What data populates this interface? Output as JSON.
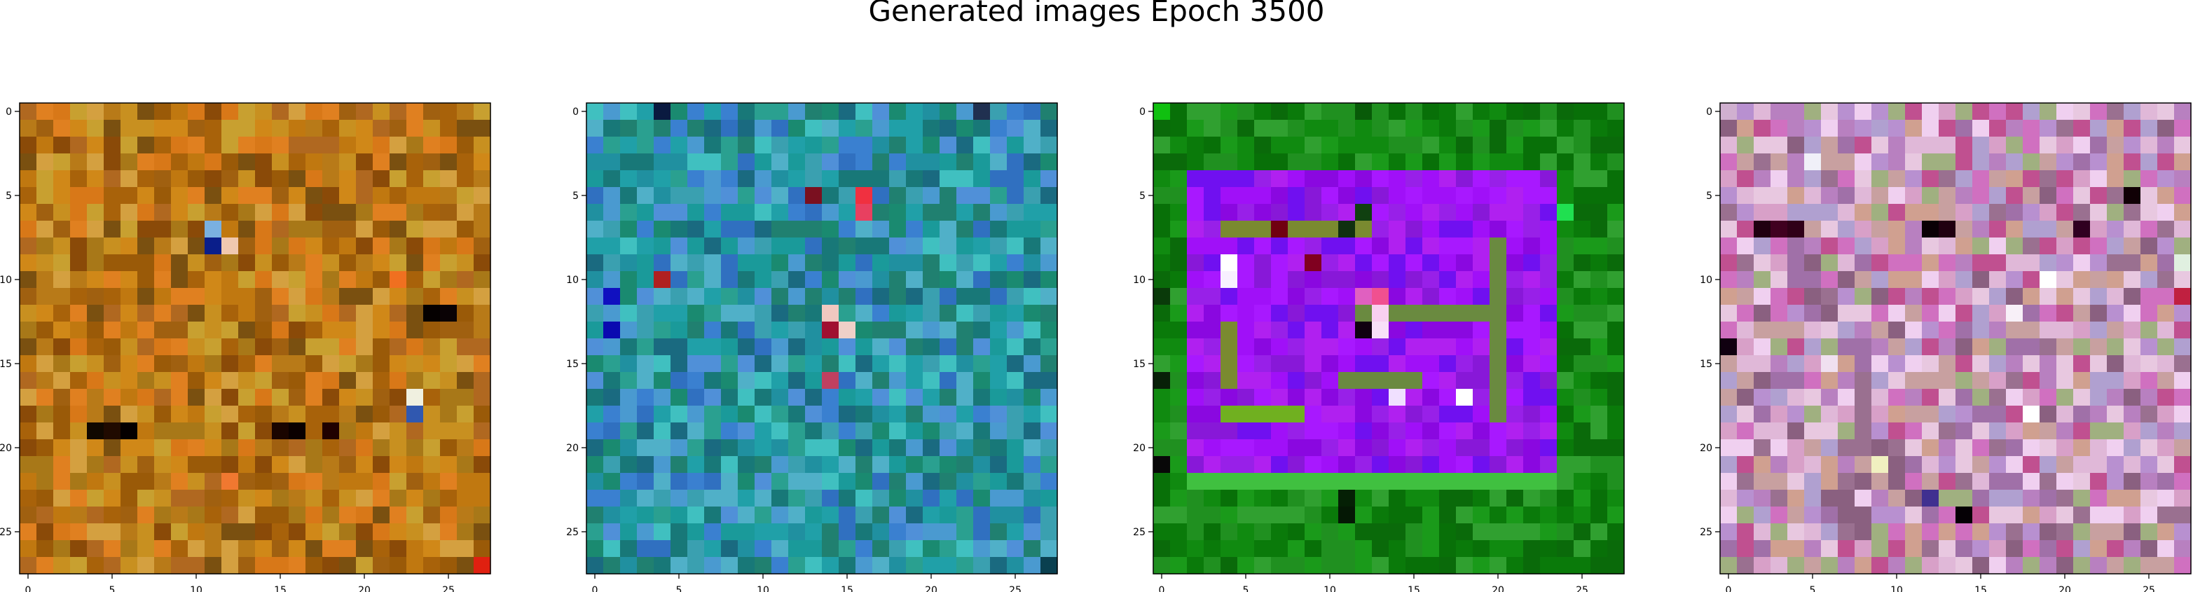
{
  "figure": {
    "title": "Generated images Epoch 3500"
  },
  "chart_data": [
    {
      "type": "heatmap",
      "panel": 1,
      "grid_size": 28,
      "xticks": [
        0,
        5,
        10,
        15,
        20,
        25
      ],
      "yticks": [
        0,
        5,
        10,
        15,
        20,
        25
      ],
      "xlim": [
        -0.5,
        27.5
      ],
      "ylim": [
        27.5,
        -0.5
      ],
      "colors": {
        "base": "#b86e0a",
        "palette": [
          "#c07810",
          "#a8620a",
          "#d08818",
          "#9a5a08",
          "#b87a18",
          "#c89020",
          "#a06010",
          "#d87818",
          "#8a4a08",
          "#b06820",
          "#c8a030",
          "#7a5010",
          "#d4a040",
          "#a87818",
          "#e08020"
        ],
        "accents": [
          {
            "row": 8,
            "col": 11,
            "color": "#0a1e8a"
          },
          {
            "row": 7,
            "col": 11,
            "color": "#7ab0e0"
          },
          {
            "row": 8,
            "col": 12,
            "color": "#f0c8b0"
          },
          {
            "row": 12,
            "col": 24,
            "color": "#050000"
          },
          {
            "row": 12,
            "col": 25,
            "color": "#0a0205"
          },
          {
            "row": 17,
            "col": 23,
            "color": "#f0f0e0"
          },
          {
            "row": 18,
            "col": 23,
            "color": "#3058b0"
          },
          {
            "row": 19,
            "col": 4,
            "color": "#100800"
          },
          {
            "row": 19,
            "col": 5,
            "color": "#200a00"
          },
          {
            "row": 19,
            "col": 6,
            "color": "#050000"
          },
          {
            "row": 19,
            "col": 15,
            "color": "#1a0500"
          },
          {
            "row": 19,
            "col": 16,
            "color": "#0a0000"
          },
          {
            "row": 19,
            "col": 18,
            "color": "#200000"
          },
          {
            "row": 27,
            "col": 27,
            "color": "#e02010"
          },
          {
            "row": 10,
            "col": 22,
            "color": "#f07020"
          },
          {
            "row": 22,
            "col": 12,
            "color": "#f07830"
          }
        ]
      }
    },
    {
      "type": "heatmap",
      "panel": 2,
      "grid_size": 28,
      "xticks": [
        0,
        5,
        10,
        15,
        20,
        25
      ],
      "yticks": [
        0,
        5,
        10,
        15,
        20,
        25
      ],
      "xlim": [
        -0.5,
        27.5
      ],
      "ylim": [
        27.5,
        -0.5
      ],
      "colors": {
        "base": "#2a8a8a",
        "palette": [
          "#1a9a9a",
          "#3aa0b0",
          "#208070",
          "#4a9ad0",
          "#2090a0",
          "#3070c0",
          "#1a8a70",
          "#50b0c8",
          "#2aa090",
          "#1a6a80",
          "#40c0c0",
          "#3a80d0",
          "#20a0a8",
          "#5090d8",
          "#187878"
        ],
        "accents": [
          {
            "row": 5,
            "col": 16,
            "color": "#f03040"
          },
          {
            "row": 6,
            "col": 16,
            "color": "#e84060"
          },
          {
            "row": 5,
            "col": 13,
            "color": "#7a1020"
          },
          {
            "row": 10,
            "col": 4,
            "color": "#b02020"
          },
          {
            "row": 12,
            "col": 14,
            "color": "#f0c8c0"
          },
          {
            "row": 13,
            "col": 14,
            "color": "#a01030"
          },
          {
            "row": 13,
            "col": 15,
            "color": "#f0d0c8"
          },
          {
            "row": 16,
            "col": 14,
            "color": "#c04060"
          },
          {
            "row": 11,
            "col": 1,
            "color": "#1010c0"
          },
          {
            "row": 13,
            "col": 1,
            "color": "#0a0ab0"
          },
          {
            "row": 0,
            "col": 4,
            "color": "#0a1a40"
          },
          {
            "row": 0,
            "col": 23,
            "color": "#203050"
          },
          {
            "row": 27,
            "col": 27,
            "color": "#0a4050"
          }
        ]
      }
    },
    {
      "type": "heatmap",
      "panel": 3,
      "grid_size": 28,
      "xticks": [
        0,
        5,
        10,
        15,
        20,
        25
      ],
      "yticks": [
        0,
        5,
        10,
        15,
        20,
        25
      ],
      "xlim": [
        -0.5,
        27.5
      ],
      "ylim": [
        27.5,
        -0.5
      ],
      "colors": {
        "base": "#0a8a0a",
        "palette": [
          "#108a10",
          "#0a7a0a",
          "#1a9a1a",
          "#087008",
          "#209020",
          "#0a6a0a",
          "#30a030"
        ],
        "inner_base": "#9a10f0",
        "inner_palette": [
          "#a010f8",
          "#8a08e0",
          "#b020f0",
          "#7010f0",
          "#9820e8",
          "#a818ff",
          "#8818d8"
        ],
        "inner_box": {
          "row_start": 4,
          "row_end": 22,
          "col_start": 2,
          "col_end": 23
        },
        "bands": [
          {
            "row_start": 7,
            "row_end": 7,
            "col_start": 4,
            "col_end": 12,
            "color": "#7a8a30"
          },
          {
            "row_start": 12,
            "row_end": 12,
            "col_start": 12,
            "col_end": 20,
            "color": "#6a8a40"
          },
          {
            "row_start": 16,
            "row_end": 16,
            "col_start": 11,
            "col_end": 15,
            "color": "#6a8a40"
          },
          {
            "row_start": 18,
            "row_end": 18,
            "col_start": 4,
            "col_end": 8,
            "color": "#70b020"
          },
          {
            "row_start": 22,
            "row_end": 22,
            "col_start": 2,
            "col_end": 23,
            "color": "#40c040"
          },
          {
            "row_start": 8,
            "row_end": 18,
            "col_start": 20,
            "col_end": 20,
            "color": "#6a8a40"
          },
          {
            "row_start": 13,
            "row_end": 16,
            "col_start": 4,
            "col_end": 4,
            "color": "#7a8a30"
          }
        ],
        "accents": [
          {
            "row": 9,
            "col": 4,
            "color": "#ffffff"
          },
          {
            "row": 10,
            "col": 4,
            "color": "#f8f0ff"
          },
          {
            "row": 11,
            "col": 13,
            "color": "#f05090"
          },
          {
            "row": 12,
            "col": 13,
            "color": "#f8d0f0"
          },
          {
            "row": 13,
            "col": 13,
            "color": "#f8e0f8"
          },
          {
            "row": 13,
            "col": 12,
            "color": "#100010"
          },
          {
            "row": 11,
            "col": 12,
            "color": "#e060c0"
          },
          {
            "row": 17,
            "col": 18,
            "color": "#ffffff"
          },
          {
            "row": 17,
            "col": 14,
            "color": "#f0e0ff"
          },
          {
            "row": 7,
            "col": 7,
            "color": "#700010"
          },
          {
            "row": 9,
            "col": 9,
            "color": "#800020"
          },
          {
            "row": 6,
            "col": 12,
            "color": "#104010"
          },
          {
            "row": 7,
            "col": 11,
            "color": "#103010"
          },
          {
            "row": 23,
            "col": 11,
            "color": "#052005"
          },
          {
            "row": 24,
            "col": 11,
            "color": "#051805"
          },
          {
            "row": 0,
            "col": 0,
            "color": "#10c010"
          },
          {
            "row": 6,
            "col": 24,
            "color": "#20e050"
          },
          {
            "row": 0,
            "col": 12,
            "color": "#085a08"
          },
          {
            "row": 11,
            "col": 0,
            "color": "#0a3a0a"
          },
          {
            "row": 16,
            "col": 0,
            "color": "#082008"
          },
          {
            "row": 21,
            "col": 0,
            "color": "#080808"
          }
        ]
      }
    },
    {
      "type": "heatmap",
      "panel": 4,
      "grid_size": 28,
      "xticks": [
        0,
        5,
        10,
        15,
        20,
        25
      ],
      "yticks": [
        0,
        5,
        10,
        15,
        20,
        25
      ],
      "xlim": [
        -0.5,
        27.5
      ],
      "ylim": [
        27.5,
        -0.5
      ],
      "colors": {
        "base": "#c890b8",
        "palette": [
          "#d8a0c8",
          "#b880c0",
          "#e0b8d8",
          "#a070a8",
          "#c8a0a0",
          "#d070c0",
          "#b0a0d0",
          "#e8c8e0",
          "#9a7090",
          "#c05090",
          "#a0b080",
          "#f0d0f0",
          "#b890d0",
          "#d0a090",
          "#8a6080"
        ],
        "accents": [
          {
            "row": 7,
            "col": 2,
            "color": "#200010"
          },
          {
            "row": 7,
            "col": 3,
            "color": "#400020"
          },
          {
            "row": 7,
            "col": 4,
            "color": "#300018"
          },
          {
            "row": 7,
            "col": 12,
            "color": "#0a0005"
          },
          {
            "row": 7,
            "col": 13,
            "color": "#200010"
          },
          {
            "row": 7,
            "col": 21,
            "color": "#300020"
          },
          {
            "row": 14,
            "col": 0,
            "color": "#100010"
          },
          {
            "row": 24,
            "col": 14,
            "color": "#050005"
          },
          {
            "row": 23,
            "col": 12,
            "color": "#403090"
          },
          {
            "row": 0,
            "col": 0,
            "color": "#d0b0d0"
          },
          {
            "row": 3,
            "col": 5,
            "color": "#f0f0f8"
          },
          {
            "row": 10,
            "col": 19,
            "color": "#ffffff"
          },
          {
            "row": 12,
            "col": 17,
            "color": "#f8f0f8"
          },
          {
            "row": 15,
            "col": 6,
            "color": "#f0e0f0"
          },
          {
            "row": 18,
            "col": 18,
            "color": "#ffffff"
          },
          {
            "row": 5,
            "col": 24,
            "color": "#100005"
          },
          {
            "row": 11,
            "col": 27,
            "color": "#c02040"
          },
          {
            "row": 9,
            "col": 27,
            "color": "#e0f0e0"
          },
          {
            "row": 21,
            "col": 9,
            "color": "#f0f0c0"
          }
        ]
      }
    }
  ]
}
